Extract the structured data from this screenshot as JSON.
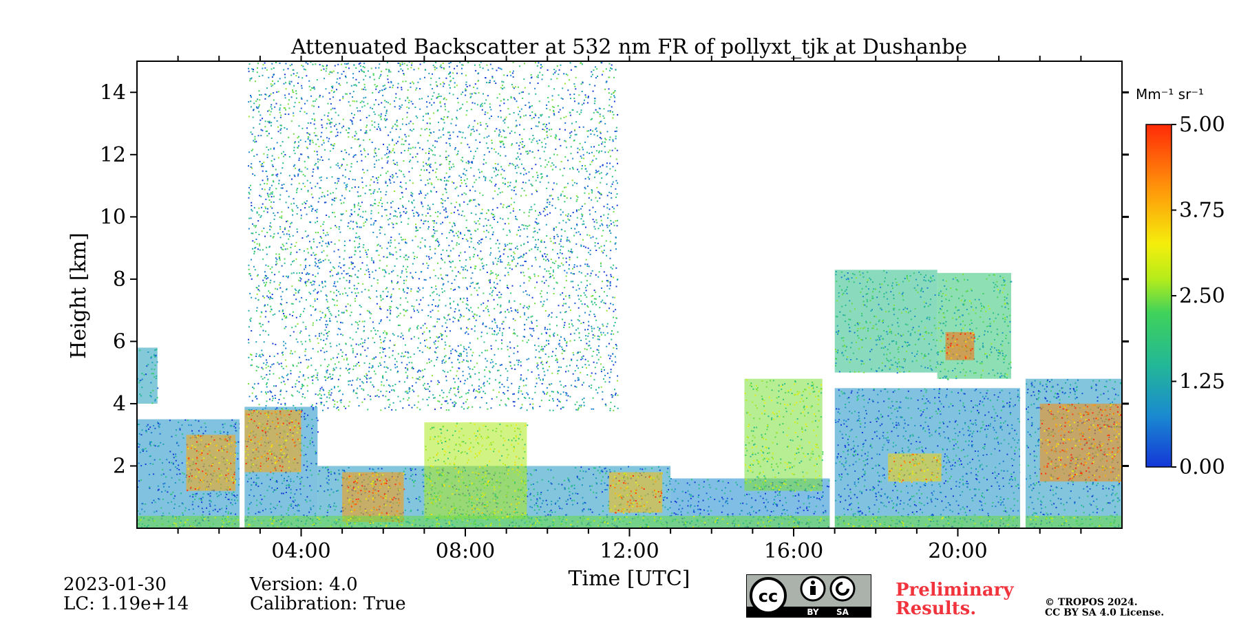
{
  "chart_data": {
    "type": "heatmap",
    "title": "Attenuated Backscatter at 532 nm FR of pollyxt_tjk at Dushanbe",
    "xlabel": "Time [UTC]",
    "ylabel": "Height [km]",
    "xlim": [
      0,
      24
    ],
    "ylim": [
      0,
      15
    ],
    "x_ticks": [
      4,
      8,
      12,
      16,
      20
    ],
    "x_tick_labels": [
      "04:00",
      "08:00",
      "12:00",
      "16:00",
      "20:00"
    ],
    "y_ticks": [
      2,
      4,
      6,
      8,
      10,
      12,
      14
    ],
    "y_tick_labels": [
      "2",
      "4",
      "6",
      "8",
      "10",
      "12",
      "14"
    ],
    "colorbar": {
      "unit_label": "Mm⁻¹ sr⁻¹",
      "range": [
        0,
        5
      ],
      "ticks": [
        0,
        1.25,
        2.5,
        3.75,
        5
      ],
      "tick_labels": [
        "0.00",
        "1.25",
        "2.50",
        "3.75",
        "5.00"
      ],
      "colormap": [
        "#1437d8",
        "#1a8ad0",
        "#23b896",
        "#3fd25a",
        "#b6ec1a",
        "#f4ee0c",
        "#ff9d0a",
        "#ff2a08"
      ]
    },
    "data_gaps_hours": [
      [
        2.5,
        2.62
      ],
      [
        16.88,
        17.0
      ],
      [
        21.52,
        21.65
      ]
    ],
    "regions": [
      {
        "t0": 0,
        "t1": 2.5,
        "base": 0,
        "top": 3.5,
        "level": 0.8
      },
      {
        "t0": 1.2,
        "t1": 2.4,
        "base": 1.2,
        "top": 3.0,
        "level": 4.2
      },
      {
        "t0": 0,
        "t1": 0.5,
        "base": 4.0,
        "top": 5.8,
        "level": 1.0
      },
      {
        "t0": 2.62,
        "t1": 4.4,
        "base": 0,
        "top": 3.9,
        "level": 0.8
      },
      {
        "t0": 2.62,
        "t1": 4.0,
        "base": 1.8,
        "top": 3.8,
        "level": 4.2
      },
      {
        "t0": 2.7,
        "t1": 11.7,
        "base": 3.8,
        "top": 15,
        "level": 1.2,
        "sparse": true
      },
      {
        "t0": 4.4,
        "t1": 13.0,
        "base": 0,
        "top": 2.0,
        "level": 0.9
      },
      {
        "t0": 5.0,
        "t1": 6.5,
        "base": 0.2,
        "top": 1.8,
        "level": 4.3
      },
      {
        "t0": 7.0,
        "t1": 9.5,
        "base": 0.3,
        "top": 3.4,
        "level": 2.8
      },
      {
        "t0": 11.5,
        "t1": 12.8,
        "base": 0.5,
        "top": 1.8,
        "level": 4.0
      },
      {
        "t0": 13.0,
        "t1": 16.88,
        "base": 0,
        "top": 1.6,
        "level": 0.7
      },
      {
        "t0": 14.8,
        "t1": 16.7,
        "base": 1.2,
        "top": 4.8,
        "level": 2.5
      },
      {
        "t0": 17.0,
        "t1": 21.52,
        "base": 0,
        "top": 4.5,
        "level": 0.8
      },
      {
        "t0": 17.0,
        "t1": 19.5,
        "base": 5.0,
        "top": 8.3,
        "level": 1.6
      },
      {
        "t0": 19.5,
        "t1": 21.3,
        "base": 4.8,
        "top": 8.2,
        "level": 1.8
      },
      {
        "t0": 19.7,
        "t1": 20.4,
        "base": 5.4,
        "top": 6.3,
        "level": 4.6
      },
      {
        "t0": 18.3,
        "t1": 19.6,
        "base": 1.5,
        "top": 2.4,
        "level": 3.8
      },
      {
        "t0": 21.65,
        "t1": 24,
        "base": 0,
        "top": 4.8,
        "level": 0.9
      },
      {
        "t0": 22.0,
        "t1": 24,
        "base": 1.5,
        "top": 4.0,
        "level": 4.4
      },
      {
        "t0": 0,
        "t1": 24,
        "base": 0,
        "top": 0.4,
        "level": 2.4
      }
    ]
  },
  "footer": {
    "date": "2023-01-30",
    "lc": "LC: 1.19e+14",
    "version": "Version: 4.0",
    "calibration": "Calibration: True",
    "preliminary_line1": "Preliminary",
    "preliminary_line2": "Results.",
    "copyright_line1": "© TROPOS 2024.",
    "copyright_line2": "CC BY SA 4.0 License.",
    "license_badge": {
      "by": "BY",
      "sa": "SA"
    }
  }
}
